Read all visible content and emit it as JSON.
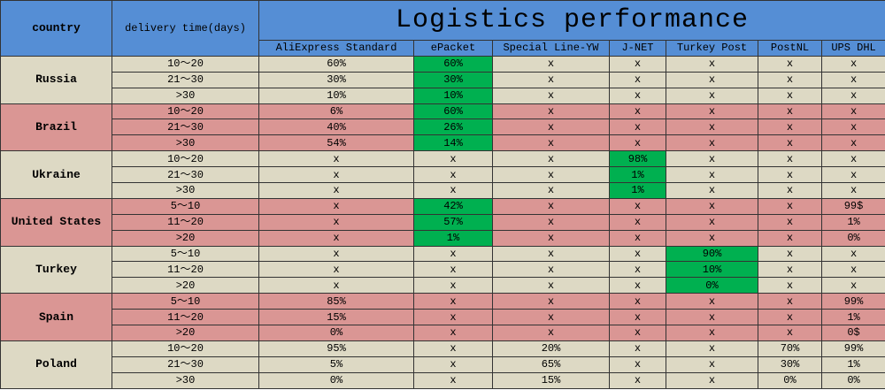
{
  "header": {
    "country": "country",
    "delivery": "delivery time(days)",
    "title": "Logistics performance",
    "columns": [
      "AliExpress Standard",
      "ePacket",
      "Special Line-YW",
      "J-NET",
      "Turkey Post",
      "PostNL",
      "UPS DHL"
    ],
    "color": "#558ed5"
  },
  "highlight_color": "#00b050",
  "groups": [
    {
      "country": "Russia",
      "color": "#ddd9c4",
      "highlight": 1,
      "rows": [
        {
          "delivery": "10～20",
          "values": [
            "60%",
            "60%",
            "x",
            "x",
            "x",
            "x",
            "x"
          ]
        },
        {
          "delivery": "21～30",
          "values": [
            "30%",
            "30%",
            "x",
            "x",
            "x",
            "x",
            "x"
          ]
        },
        {
          "delivery": ">30",
          "values": [
            "10%",
            "10%",
            "x",
            "x",
            "x",
            "x",
            "x"
          ]
        }
      ]
    },
    {
      "country": "Brazil",
      "color": "#da9694",
      "highlight": 1,
      "rows": [
        {
          "delivery": "10～20",
          "values": [
            "6%",
            "60%",
            "x",
            "x",
            "x",
            "x",
            "x"
          ]
        },
        {
          "delivery": "21～30",
          "values": [
            "40%",
            "26%",
            "x",
            "x",
            "x",
            "x",
            "x"
          ]
        },
        {
          "delivery": ">30",
          "values": [
            "54%",
            "14%",
            "x",
            "x",
            "x",
            "x",
            "x"
          ]
        }
      ]
    },
    {
      "country": "Ukraine",
      "color": "#ddd9c4",
      "highlight": 3,
      "rows": [
        {
          "delivery": "10～20",
          "values": [
            "x",
            "x",
            "x",
            "98%",
            "x",
            "x",
            "x"
          ]
        },
        {
          "delivery": "21～30",
          "values": [
            "x",
            "x",
            "x",
            "1%",
            "x",
            "x",
            "x"
          ]
        },
        {
          "delivery": ">30",
          "values": [
            "x",
            "x",
            "x",
            "1%",
            "x",
            "x",
            "x"
          ]
        }
      ]
    },
    {
      "country": "United States",
      "color": "#da9694",
      "highlight": 1,
      "rows": [
        {
          "delivery": "5～10",
          "values": [
            "x",
            "42%",
            "x",
            "x",
            "x",
            "x",
            "99$"
          ]
        },
        {
          "delivery": "11～20",
          "values": [
            "x",
            "57%",
            "x",
            "x",
            "x",
            "x",
            "1%"
          ]
        },
        {
          "delivery": ">20",
          "values": [
            "x",
            "1%",
            "x",
            "x",
            "x",
            "x",
            "0%"
          ]
        }
      ]
    },
    {
      "country": "Turkey",
      "color": "#ddd9c4",
      "highlight": 4,
      "rows": [
        {
          "delivery": "5～10",
          "values": [
            "x",
            "x",
            "x",
            "x",
            "90%",
            "x",
            "x"
          ]
        },
        {
          "delivery": "11～20",
          "values": [
            "x",
            "x",
            "x",
            "x",
            "10%",
            "x",
            "x"
          ]
        },
        {
          "delivery": ">20",
          "values": [
            "x",
            "x",
            "x",
            "x",
            "0%",
            "x",
            "x"
          ]
        }
      ]
    },
    {
      "country": "Spain",
      "color": "#da9694",
      "rows": [
        {
          "delivery": "5～10",
          "values": [
            "85%",
            "x",
            "x",
            "x",
            "x",
            "x",
            "99%"
          ]
        },
        {
          "delivery": "11～20",
          "values": [
            "15%",
            "x",
            "x",
            "x",
            "x",
            "x",
            "1%"
          ]
        },
        {
          "delivery": ">20",
          "values": [
            "0%",
            "x",
            "x",
            "x",
            "x",
            "x",
            "0$"
          ]
        }
      ]
    },
    {
      "country": "Poland",
      "color": "#ddd9c4",
      "rows": [
        {
          "delivery": "10～20",
          "values": [
            "95%",
            "x",
            "20%",
            "x",
            "x",
            "70%",
            "99%"
          ]
        },
        {
          "delivery": "21～30",
          "values": [
            "5%",
            "x",
            "65%",
            "x",
            "x",
            "30%",
            "1%"
          ]
        },
        {
          "delivery": ">30",
          "values": [
            "0%",
            "x",
            "15%",
            "x",
            "x",
            "0%",
            "0%"
          ]
        }
      ]
    }
  ]
}
